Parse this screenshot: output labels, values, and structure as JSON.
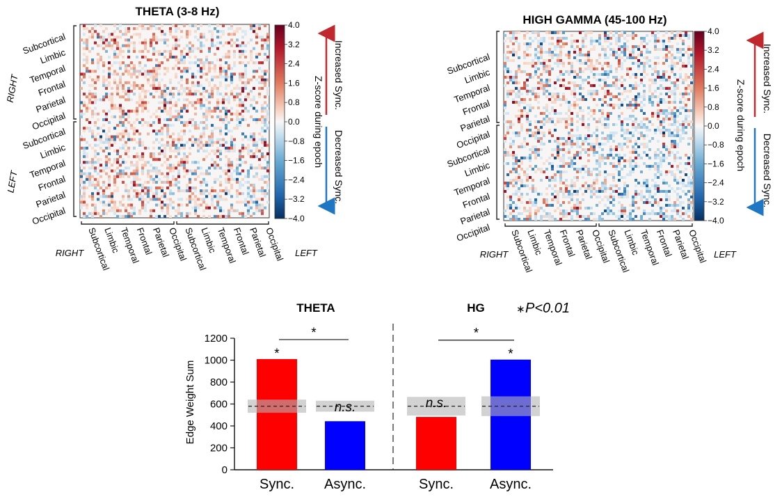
{
  "chart_data": [
    {
      "type": "heatmap",
      "title": "THETA (3-8 Hz)",
      "colorbar": {
        "ticks": [
          "4.0",
          "3.2",
          "2.4",
          "1.6",
          "0.8",
          "0.0",
          "−0.8",
          "−1.6",
          "−2.4",
          "−3.2",
          "−4.0"
        ],
        "range": [
          -4.0,
          4.0
        ],
        "label": "Z-score during epoch",
        "up_label": "Increased Sync.",
        "down_label": "Decreased Sync.",
        "up_color": "#c0282d",
        "down_color": "#1f77c4"
      },
      "groups": [
        "RIGHT",
        "LEFT"
      ],
      "regions": [
        "Subcortical",
        "Limbic",
        "Temporal",
        "Frontal",
        "Parietal",
        "Occipital"
      ],
      "matrix_size": 68,
      "pattern": "increased synchronization dominant in right-hemisphere block"
    },
    {
      "type": "heatmap",
      "title": "HIGH GAMMA (45-100 Hz)",
      "colorbar": {
        "ticks": [
          "4.0",
          "3.2",
          "2.4",
          "1.6",
          "0.8",
          "0.0",
          "−0.8",
          "−1.6",
          "−2.4",
          "−3.2",
          "−4.0"
        ],
        "range": [
          -4.0,
          4.0
        ],
        "label": "Z-score during epoch",
        "up_label": "Increased Sync.",
        "down_label": "Decreased Sync.",
        "up_color": "#c0282d",
        "down_color": "#1f77c4"
      },
      "groups": [
        "RIGHT",
        "LEFT"
      ],
      "regions": [
        "Subcortical",
        "Limbic",
        "Temporal",
        "Frontal",
        "Parietal",
        "Occipital"
      ],
      "matrix_size": 68,
      "pattern": "decreased synchronization dominant in left-hemisphere block"
    },
    {
      "type": "bar",
      "ylabel": "Edge Weight Sum",
      "ylim": [
        0,
        1200
      ],
      "yticks": [
        0,
        200,
        400,
        600,
        800,
        1000,
        1200
      ],
      "groups": [
        {
          "name": "THETA",
          "bars": [
            {
              "category": "Sync.",
              "value": 1010,
              "color": "#ff0000",
              "label": "*",
              "null_mean": 580,
              "null_band": [
                520,
                640
              ]
            },
            {
              "category": "Async.",
              "value": 443,
              "color": "#0000ff",
              "label": "n.s.",
              "null_mean": 580,
              "null_band": [
                530,
                630
              ]
            }
          ],
          "comparison": "*"
        },
        {
          "name": "HG",
          "bars": [
            {
              "category": "Sync.",
              "value": 482,
              "color": "#ff0000",
              "label": "n.s.",
              "null_mean": 580,
              "null_band": [
                495,
                665
              ]
            },
            {
              "category": "Async.",
              "value": 1005,
              "color": "#0000ff",
              "label": "*",
              "null_mean": 580,
              "null_band": [
                490,
                670
              ]
            }
          ],
          "comparison": "*"
        }
      ],
      "legend": {
        "star": "∗",
        "text": "P<0.01"
      }
    }
  ]
}
